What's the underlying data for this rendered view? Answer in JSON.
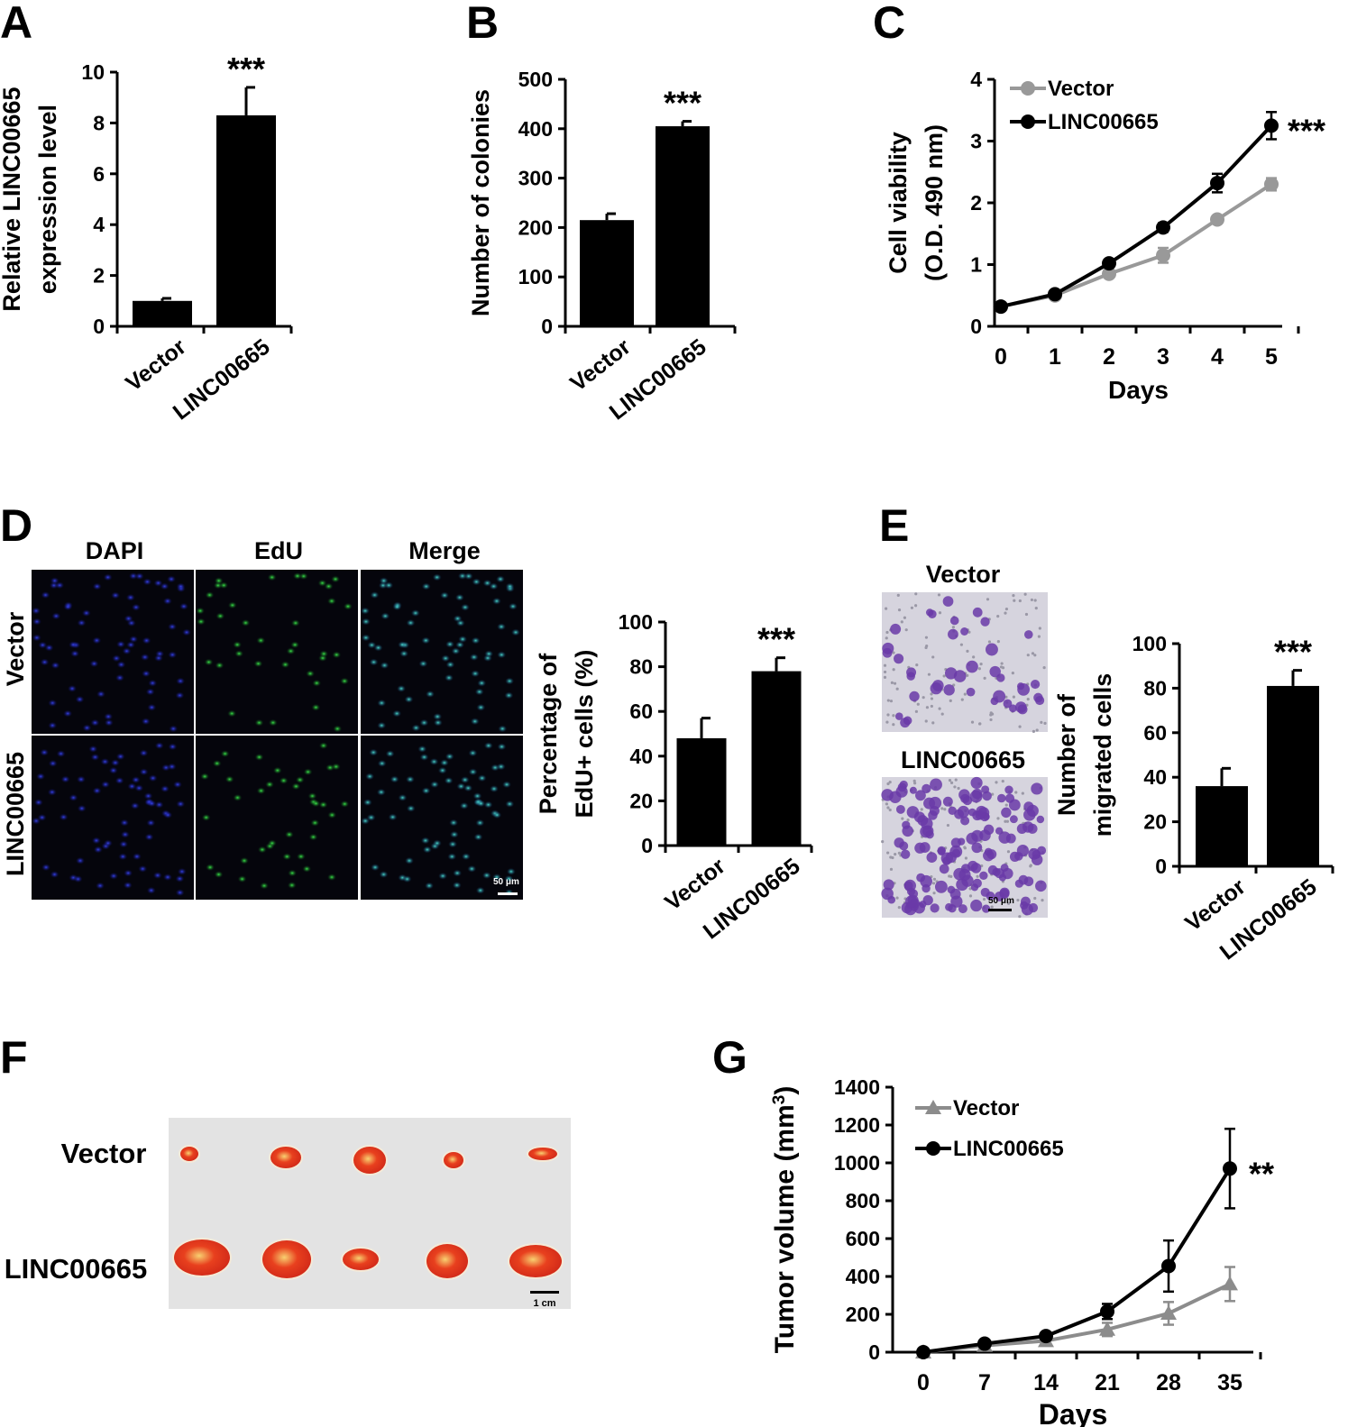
{
  "panels": {
    "A": "A",
    "B": "B",
    "C": "C",
    "D": "D",
    "E": "E",
    "F": "F",
    "G": "G"
  },
  "colors": {
    "black": "#000000",
    "gray": "#8c8c8c",
    "dapi": "#1f28c8",
    "edu": "#20c030",
    "merge": "#30c0b0",
    "crystal": "#6a3aa8",
    "tumor": "#e0301e"
  },
  "chart_data": [
    {
      "id": "A",
      "type": "bar",
      "categories": [
        "Vector",
        "LINC00665"
      ],
      "values": [
        1.0,
        8.3
      ],
      "errors": [
        0.1,
        1.1
      ],
      "ylabel": [
        "Relative  LINC00665",
        "expression level"
      ],
      "ylim": [
        0,
        10
      ],
      "yticks": [
        0,
        2,
        4,
        6,
        8,
        10
      ],
      "significance": "***"
    },
    {
      "id": "B",
      "type": "bar",
      "categories": [
        "Vector",
        "LINC00665"
      ],
      "values": [
        215,
        405
      ],
      "errors": [
        13,
        10
      ],
      "ylabel": [
        "Number of colonies"
      ],
      "ylim": [
        0,
        500
      ],
      "yticks": [
        0,
        100,
        200,
        300,
        400,
        500
      ],
      "significance": "***"
    },
    {
      "id": "C",
      "type": "line",
      "x": [
        0,
        1,
        2,
        3,
        4,
        5
      ],
      "series": [
        {
          "name": "Vector",
          "values": [
            0.32,
            0.5,
            0.85,
            1.15,
            1.73,
            2.3
          ],
          "errors": [
            0.03,
            0.03,
            0.04,
            0.12,
            0.05,
            0.1
          ]
        },
        {
          "name": "LINC00665",
          "values": [
            0.32,
            0.52,
            1.02,
            1.6,
            2.32,
            3.25
          ],
          "errors": [
            0.03,
            0.03,
            0.05,
            0.07,
            0.15,
            0.22
          ]
        }
      ],
      "xlabel": "Days",
      "ylabel": [
        "Cell viability",
        "(O.D. 490 nm)"
      ],
      "ylim": [
        0,
        4
      ],
      "yticks": [
        0,
        1,
        2,
        3,
        4
      ],
      "significance": "***"
    },
    {
      "id": "D",
      "type": "bar",
      "categories": [
        "Vector",
        "LINC00665"
      ],
      "values": [
        48,
        78
      ],
      "errors": [
        9,
        6
      ],
      "ylabel": [
        "Percentage of",
        "EdU+ cells (%)"
      ],
      "ylim": [
        0,
        100
      ],
      "yticks": [
        0,
        20,
        40,
        60,
        80,
        100
      ],
      "significance": "***"
    },
    {
      "id": "E",
      "type": "bar",
      "categories": [
        "Vector",
        "LINC00665"
      ],
      "values": [
        36,
        81
      ],
      "errors": [
        8,
        7
      ],
      "ylabel": [
        "Number of",
        "migrated cells"
      ],
      "ylim": [
        0,
        100
      ],
      "yticks": [
        0,
        20,
        40,
        60,
        80,
        100
      ],
      "significance": "***"
    },
    {
      "id": "G",
      "type": "line",
      "x": [
        0,
        7,
        14,
        21,
        28,
        35
      ],
      "series": [
        {
          "name": "Vector",
          "marker": "triangle",
          "values": [
            0,
            35,
            60,
            120,
            205,
            360
          ],
          "errors": [
            5,
            10,
            15,
            35,
            60,
            90
          ]
        },
        {
          "name": "LINC00665",
          "marker": "circle",
          "values": [
            0,
            45,
            85,
            215,
            455,
            970
          ],
          "errors": [
            5,
            10,
            15,
            40,
            135,
            210
          ]
        }
      ],
      "xlabel": "Days",
      "ylabel_main": "Tumor volume (mm",
      "ylabel_sup": "3",
      "ylabel_tail": ")",
      "ylim": [
        0,
        1400
      ],
      "yticks": [
        0,
        200,
        400,
        600,
        800,
        1000,
        1200,
        1400
      ],
      "significance": "**"
    }
  ],
  "panel_d_images": {
    "columns": [
      "DAPI",
      "EdU",
      "Merge"
    ],
    "rows": [
      "Vector",
      "LINC00665"
    ],
    "scale_bar": "50 μm"
  },
  "panel_e_images": {
    "rows": [
      "Vector",
      "LINC00665"
    ],
    "scale_bar": "50 μm"
  },
  "panel_f_images": {
    "rows": [
      "Vector",
      "LINC00665"
    ],
    "scale_bar": "1 cm"
  }
}
